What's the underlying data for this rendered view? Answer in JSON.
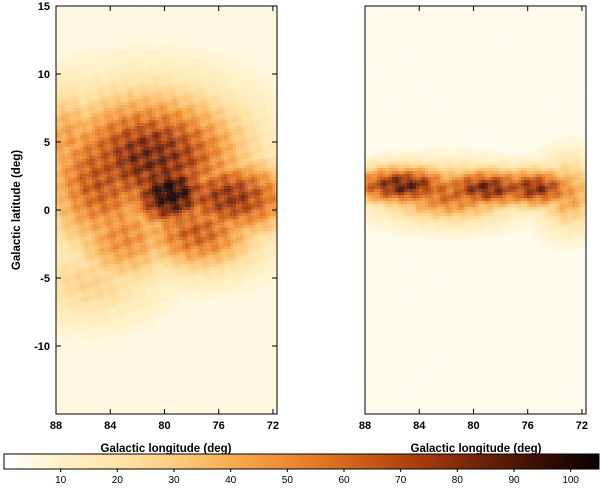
{
  "chart_data": {
    "type": "heatmap",
    "panels": [
      {
        "name": "left",
        "xlabel": "Galactic longitude (deg)",
        "ylabel": "Galactic latitude (deg)",
        "xlim": [
          88,
          71.7
        ],
        "ylim": [
          -15,
          15
        ],
        "xticks": [
          88,
          84,
          80,
          76,
          72
        ],
        "yticks": [
          15,
          10,
          5,
          0,
          -5,
          -10
        ],
        "emission_peaks": [
          {
            "l": 81.0,
            "b": 3.8,
            "value": 78,
            "sl": 4.6,
            "sb": 3.1
          },
          {
            "l": 79.6,
            "b": 1.2,
            "value": 96,
            "sl": 2.2,
            "sb": 1.8
          },
          {
            "l": 84.6,
            "b": 2.4,
            "value": 62,
            "sl": 2.9,
            "sb": 3.6
          },
          {
            "l": 75.2,
            "b": 0.9,
            "value": 72,
            "sl": 3.4,
            "sb": 1.9
          },
          {
            "l": 77.6,
            "b": -1.6,
            "value": 58,
            "sl": 3.0,
            "sb": 1.9
          },
          {
            "l": 83.0,
            "b": -1.9,
            "value": 45,
            "sl": 2.6,
            "sb": 2.3
          },
          {
            "l": 87.0,
            "b": 5.0,
            "value": 40,
            "sl": 1.8,
            "sb": 2.6
          },
          {
            "l": 85.5,
            "b": -5.3,
            "value": 22,
            "sl": 3.2,
            "sb": 1.9
          }
        ],
        "background_value": 6
      },
      {
        "name": "right",
        "xlabel": "Galactic longitude (deg)",
        "xlim": [
          88,
          71.7
        ],
        "ylim": [
          -15,
          15
        ],
        "xticks": [
          88,
          84,
          80,
          76,
          72
        ],
        "emission_peaks": [
          {
            "l": 85.2,
            "b": 1.8,
            "value": 84,
            "sl": 2.7,
            "sb": 0.95
          },
          {
            "l": 79.0,
            "b": 1.6,
            "value": 80,
            "sl": 2.7,
            "sb": 0.95
          },
          {
            "l": 75.5,
            "b": 1.6,
            "value": 76,
            "sl": 2.3,
            "sb": 0.95
          },
          {
            "l": 81.8,
            "b": 1.2,
            "value": 58,
            "sl": 3.4,
            "sb": 1.3
          },
          {
            "l": 73.0,
            "b": 1.2,
            "value": 42,
            "sl": 1.5,
            "sb": 1.7
          }
        ],
        "background_value": 4
      }
    ],
    "colorbar": {
      "ticks": [
        10,
        20,
        30,
        40,
        50,
        60,
        70,
        80,
        90,
        100
      ],
      "range": [
        0,
        105
      ],
      "colormap": [
        "#ffffff",
        "#fff1c6",
        "#fee2a4",
        "#fcc878",
        "#f6a64a",
        "#e9822a",
        "#cd5d18",
        "#a63c0d",
        "#702308",
        "#380f04",
        "#0a0000"
      ]
    },
    "grid": false
  }
}
